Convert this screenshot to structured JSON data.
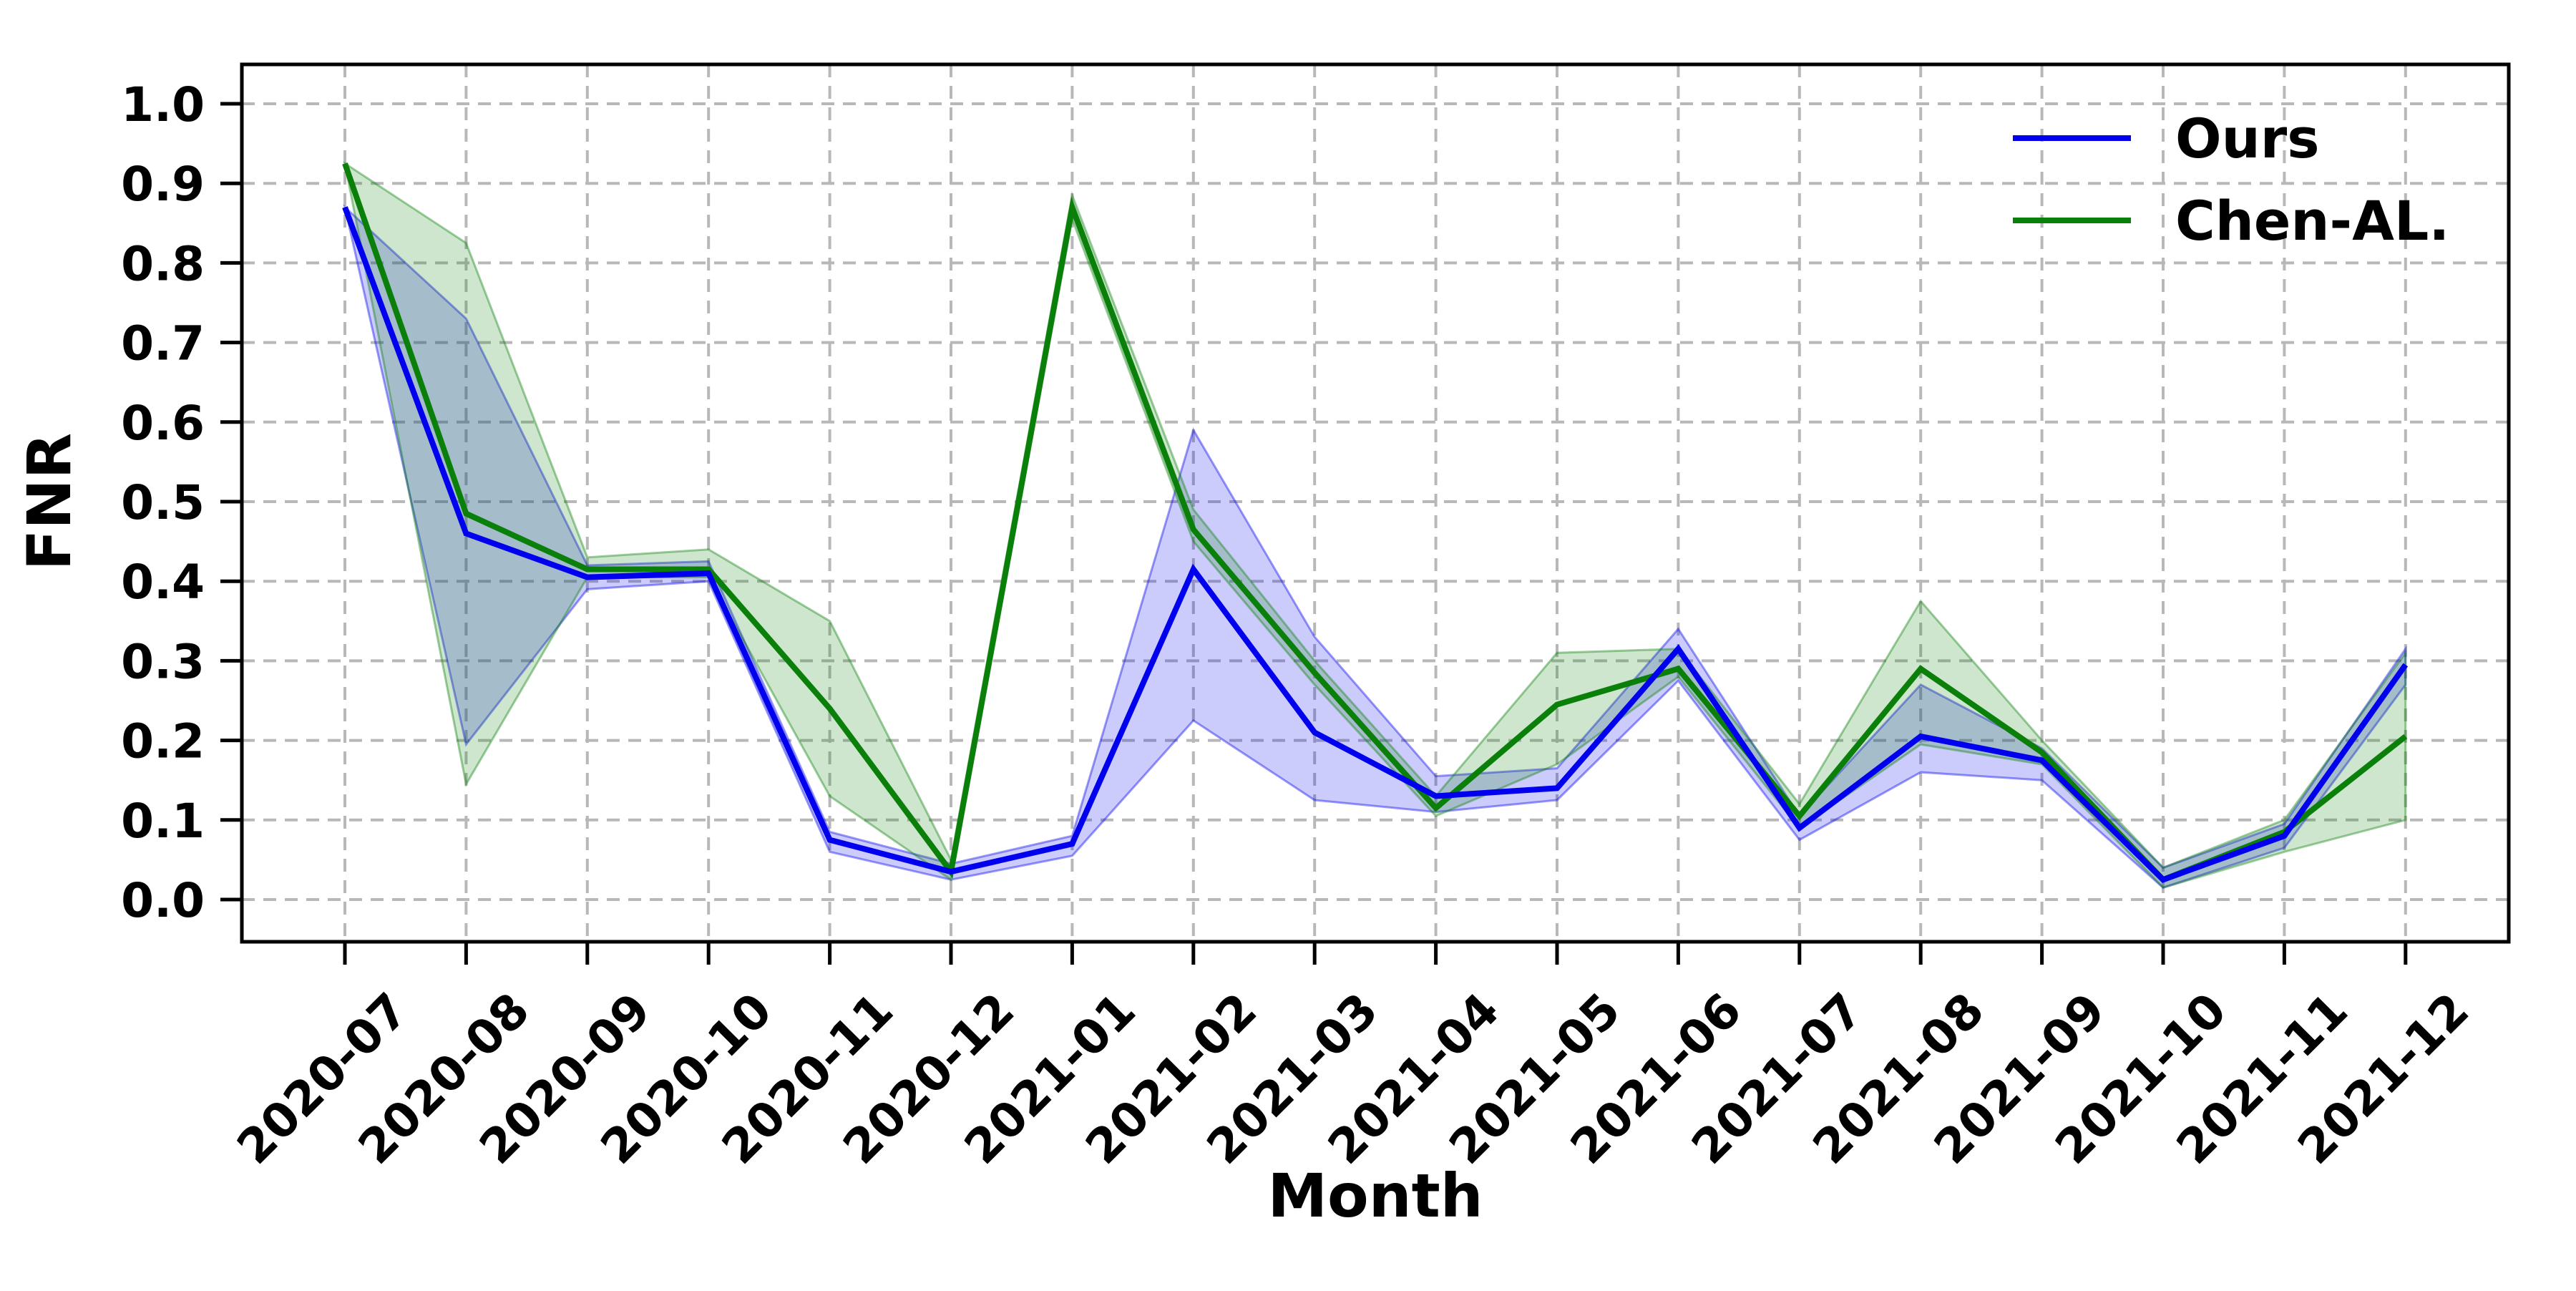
{
  "figure": {
    "background": "#ffffff",
    "grid_color": "#b8b8b8",
    "spine_color": "#000000",
    "text_color": "#000000"
  },
  "chart_data": {
    "type": "line",
    "title": "",
    "xlabel": "Month",
    "ylabel": "FNR",
    "ylim": [
      -0.053,
      1.045
    ],
    "yticks": [
      0.0,
      0.1,
      0.2,
      0.3,
      0.4,
      0.5,
      0.6,
      0.7,
      0.8,
      0.9,
      1.0
    ],
    "ytick_labels": [
      "0.0",
      "0.1",
      "0.2",
      "0.3",
      "0.4",
      "0.5",
      "0.6",
      "0.7",
      "0.8",
      "0.9",
      "1.0"
    ],
    "grid": true,
    "grid_style": "dashed",
    "legend_position": "upper right",
    "categories": [
      "2020-07",
      "2020-08",
      "2020-09",
      "2020-10",
      "2020-11",
      "2020-12",
      "2021-01",
      "2021-02",
      "2021-03",
      "2021-04",
      "2021-05",
      "2021-06",
      "2021-07",
      "2021-08",
      "2021-09",
      "2021-10",
      "2021-11",
      "2021-12"
    ],
    "series": [
      {
        "name": "Ours",
        "color": "#0000ee",
        "band_fill_opacity": 0.2,
        "values": [
          0.87,
          0.46,
          0.405,
          0.41,
          0.075,
          0.035,
          0.07,
          0.415,
          0.21,
          0.13,
          0.14,
          0.315,
          0.09,
          0.205,
          0.175,
          0.025,
          0.08,
          0.295
        ],
        "band_lower": [
          0.87,
          0.195,
          0.39,
          0.4,
          0.06,
          0.025,
          0.055,
          0.225,
          0.125,
          0.11,
          0.125,
          0.275,
          0.075,
          0.16,
          0.15,
          0.015,
          0.065,
          0.27
        ],
        "band_upper": [
          0.87,
          0.73,
          0.42,
          0.425,
          0.085,
          0.045,
          0.08,
          0.59,
          0.33,
          0.155,
          0.165,
          0.34,
          0.105,
          0.27,
          0.19,
          0.04,
          0.095,
          0.315
        ]
      },
      {
        "name": "Chen-AL.",
        "color": "#0a800a",
        "band_fill_opacity": 0.2,
        "values": [
          0.925,
          0.485,
          0.415,
          0.415,
          0.24,
          0.035,
          0.87,
          0.465,
          0.285,
          0.115,
          0.245,
          0.29,
          0.105,
          0.29,
          0.185,
          0.025,
          0.085,
          0.205
        ],
        "band_lower": [
          0.925,
          0.145,
          0.405,
          0.405,
          0.13,
          0.025,
          0.855,
          0.45,
          0.27,
          0.105,
          0.17,
          0.28,
          0.09,
          0.195,
          0.17,
          0.015,
          0.06,
          0.1
        ],
        "band_upper": [
          0.925,
          0.825,
          0.43,
          0.44,
          0.35,
          0.05,
          0.885,
          0.49,
          0.3,
          0.13,
          0.31,
          0.315,
          0.12,
          0.375,
          0.2,
          0.04,
          0.1,
          0.31
        ]
      }
    ]
  }
}
